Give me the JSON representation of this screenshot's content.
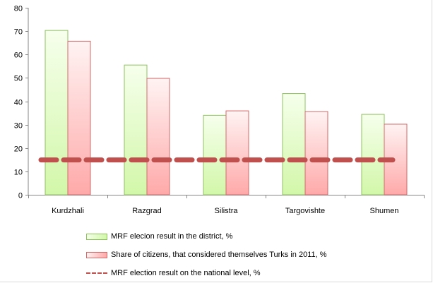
{
  "chart_data": {
    "type": "bar",
    "categories": [
      "Kurdzhali",
      "Razgrad",
      "Silistra",
      "Targovishte",
      "Shumen"
    ],
    "series": [
      {
        "name": "MRF elecion result in the district, %",
        "values": [
          70.3,
          55.5,
          34.0,
          43.3,
          34.4
        ],
        "color": "#d2f7a9",
        "edge": "#8fc161"
      },
      {
        "name": "Share of citizens, that considered themselves Turks in 2011, %",
        "values": [
          65.7,
          49.8,
          35.9,
          35.6,
          30.2
        ],
        "color": "#ffa9a9",
        "edge": "#d36a6a"
      }
    ],
    "line": {
      "name": "MRF election result on the national level, %",
      "value": 14.9,
      "color": "#c0504d"
    },
    "ylim": [
      0,
      80
    ],
    "yticks": [
      0,
      10,
      20,
      30,
      40,
      50,
      60,
      70,
      80
    ],
    "grid": false,
    "legend_placement": "bottom"
  }
}
